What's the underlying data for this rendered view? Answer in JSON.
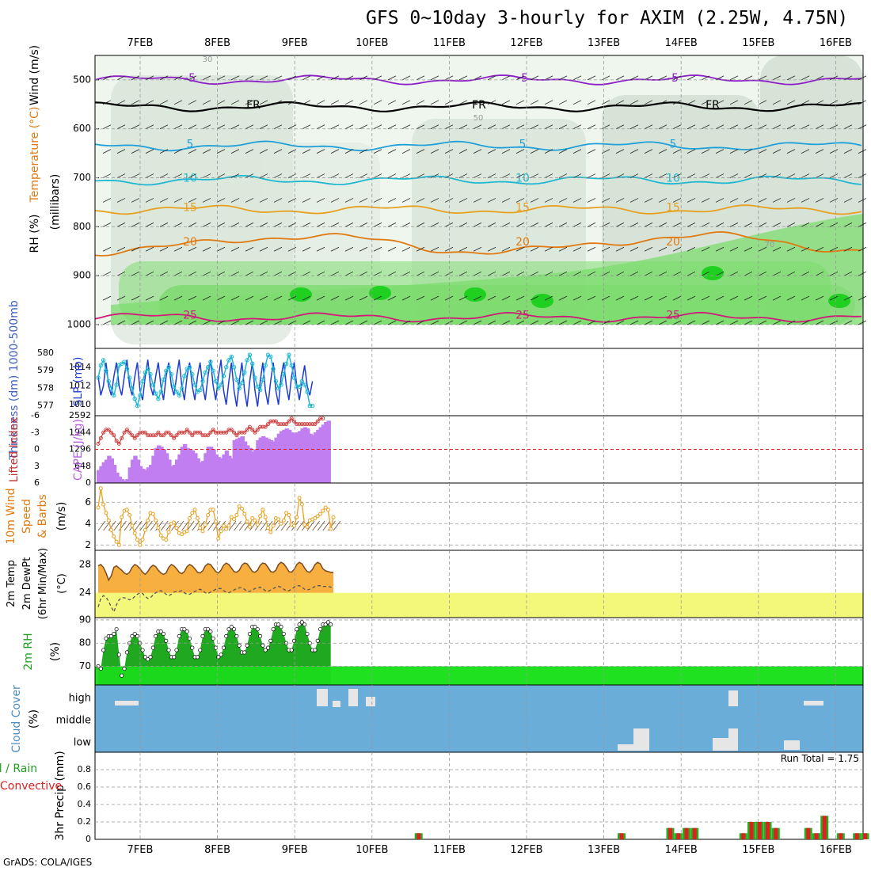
{
  "title": "GFS 0~10day 3-hourly for AXIM (2.25W, 4.75N)",
  "footer": "GrADS: COLA/IGES",
  "dates": [
    "7FEB",
    "8FEB",
    "9FEB",
    "10FEB",
    "11FEB",
    "12FEB",
    "13FEB",
    "14FEB",
    "15FEB",
    "16FEB"
  ],
  "colors": {
    "green": "#00c800",
    "lightgreen": "#7ddc6f",
    "purple": "#8c1fc8",
    "cyan": "#20b8d0",
    "blue": "#1e3cd2",
    "orange": "#e07a10",
    "yellowOrange": "#e8a020",
    "magenta": "#d01a7a",
    "cape": "#c07ef0",
    "cloudBg": "#6aadd8",
    "temp": "#f7b040",
    "dew": "#f4f87a",
    "red": "#e02020"
  },
  "chart_data": [
    {
      "type": "contour",
      "panel": "upper-air",
      "ylabel_parts": [
        "RH (%)",
        "Temperature (°C)",
        "Wind (m/s)"
      ],
      "ylabel_units": "(millibars)",
      "yticks": [
        500,
        600,
        700,
        800,
        900,
        1000
      ],
      "ylim": [
        1000,
        450
      ],
      "temperature_isotherms": [
        {
          "label": "-5",
          "p": 500
        },
        {
          "label": "FR",
          "p": 555
        },
        {
          "label": "5",
          "p": 635
        },
        {
          "label": "10",
          "p": 705
        },
        {
          "label": "15",
          "p": 765
        },
        {
          "label": "20",
          "p": 835
        },
        {
          "label": "25",
          "p": 985
        }
      ],
      "rh_labels": [
        "30",
        "50",
        "70"
      ]
    },
    {
      "type": "line",
      "panel": "thickness-slp",
      "ylabel_left": "Thickness (dm) 1000-500mb",
      "ylabel_right": "SLP (mb)",
      "yticks_left": [
        577,
        578,
        579,
        580
      ],
      "yticks_right": [
        1010,
        1012,
        1014
      ],
      "series": [
        {
          "name": "SLP (mb)",
          "values": [
            1013,
            1011,
            1012,
            1014.5,
            1012,
            1011,
            1013,
            1014.5,
            1012,
            1011,
            1013,
            1014.8,
            1012,
            1011,
            1013,
            1014.5,
            1011.5,
            1010.5,
            1013,
            1014.8,
            1012,
            1011,
            1013,
            1014.5,
            1012,
            1010.5,
            1013,
            1014.5,
            1012,
            1011,
            1013,
            1014.8,
            1012,
            1010.5,
            1013,
            1014.5,
            1012,
            1010.5,
            1013,
            1014.5,
            1012,
            1010.5,
            1013,
            1014.8,
            1012,
            1010.5,
            1013,
            1014.8,
            1011.5,
            1010,
            1012.5,
            1014.5,
            1011.5,
            1009.8,
            1012.5,
            1014.5,
            1011.5,
            1009.8,
            1012.5,
            1014.5,
            1011.5,
            1009.8,
            1012.5,
            1014.5,
            1011.5,
            1010,
            1012.5,
            1014.5,
            1011.5,
            1010,
            1013,
            1014.5,
            1012,
            1010.5,
            1013,
            1014.5,
            1012,
            1010.5,
            1012.5,
            1014.2,
            1012,
            1011,
            1012.5
          ]
        },
        {
          "name": "1000-500mb Thickness (dm)",
          "values": [
            578.6,
            579.3,
            579.6,
            579.0,
            578.4,
            578.0,
            577.6,
            578.2,
            579.3,
            579.4,
            579.5,
            579.1,
            578.6,
            578.0,
            577.4,
            577.0,
            577.6,
            578.4,
            578.9,
            579.1,
            578.8,
            578.2,
            577.7,
            577.4,
            577.8,
            578.5,
            579.0,
            579.2,
            578.8,
            578.1,
            577.8,
            577.6,
            578.0,
            578.7,
            579.1,
            579.2,
            578.8,
            578.2,
            577.8,
            577.9,
            578.4,
            578.9,
            579.2,
            579.5,
            579.0,
            578.4,
            578.0,
            578.2,
            578.7,
            579.2,
            579.6,
            579.8,
            579.2,
            578.5,
            578.0,
            578.3,
            578.9,
            579.6,
            579.9,
            579.4,
            578.6,
            578.1,
            577.9,
            578.5,
            579.3,
            579.9,
            579.8,
            579.1,
            578.4,
            578.0,
            578.2,
            578.8,
            579.4,
            579.9,
            579.3,
            578.6,
            578.1,
            578.1,
            578.4,
            578.2,
            577.8,
            577.0,
            577.0
          ]
        }
      ]
    },
    {
      "type": "bar-line",
      "panel": "cape-li",
      "ylabel_left": "Lifted Index",
      "ylabel_right": "CAPE (J/kg)",
      "yticks_left": [
        "-6",
        "-3",
        "0",
        "3",
        "6"
      ],
      "yticks_right": [
        648,
        1296,
        1944,
        2592
      ],
      "series": [
        {
          "name": "CAPE (J/kg)",
          "values": [
            500,
            650,
            800,
            900,
            1050,
            950,
            700,
            400,
            250,
            150,
            100,
            150,
            600,
            900,
            1050,
            900,
            650,
            550,
            500,
            600,
            700,
            1050,
            1350,
            1450,
            1400,
            1300,
            1150,
            900,
            650,
            700,
            900,
            1100,
            1400,
            1500,
            1350,
            1300,
            1250,
            1150,
            950,
            800,
            850,
            1150,
            1400,
            1400,
            1300,
            1100,
            1000,
            950,
            1100,
            1250,
            1050,
            950,
            1650,
            1700,
            1750,
            1800,
            1600,
            1450,
            1350,
            1200,
            1300,
            1650,
            1750,
            1800,
            1750,
            1700,
            1650,
            1600,
            1750,
            1900,
            2000,
            2050,
            2100,
            2050,
            1950,
            1900,
            1950,
            2000,
            2100,
            2150,
            2100,
            1900,
            1850,
            1950,
            2050,
            2150,
            2250,
            2350,
            2400
          ]
        },
        {
          "name": "Lifted Index",
          "values": [
            -1,
            -2,
            -3,
            -3.5,
            -3.5,
            -3,
            -2.5,
            -1.5,
            -1,
            -2,
            -3,
            -3.5,
            -3,
            -2.5,
            -2,
            -2.5,
            -3,
            -3,
            -3,
            -2.5,
            -2.5,
            -2.5,
            -2.5,
            -3,
            -2.5,
            -2.5,
            -3,
            -3,
            -2.5,
            -2,
            -2.5,
            -3,
            -3,
            -3,
            -3.5,
            -3,
            -2.5,
            -3,
            -3,
            -3,
            -2.5,
            -2.5,
            -2.5,
            -3,
            -3.5,
            -3,
            -3,
            -3,
            -3,
            -3,
            -3.5,
            -3.5,
            -3,
            -2.5,
            -3,
            -3,
            -3,
            -3.5,
            -4,
            -3.5,
            -3,
            -3.5,
            -4,
            -4,
            -4,
            -4.5,
            -5,
            -5,
            -5,
            -4.5,
            -4.5,
            -4.5,
            -4.5,
            -5,
            -5.5,
            -5,
            -4.5,
            -4.5,
            -4.5,
            -4.5,
            -4.5,
            -4.5,
            -4.5,
            -4.5,
            -5,
            -5.5,
            -5.5
          ]
        }
      ]
    },
    {
      "type": "line",
      "panel": "wind10m",
      "ylabel": "10m Wind Speed & Barbs (m/s)",
      "ylabel_lines": [
        "10m Wind",
        "Speed",
        "& Barbs"
      ],
      "ylabel_units": "(m/s)",
      "yticks": [
        2,
        4,
        6
      ],
      "ylim": [
        1.5,
        7.8
      ],
      "series": [
        {
          "name": "10m Wind Speed",
          "values": [
            5.5,
            7.3,
            5.8,
            5.0,
            4.3,
            3.4,
            2.8,
            2.3,
            2.0,
            4.6,
            5.2,
            5.3,
            4.8,
            3.8,
            3.1,
            2.5,
            2.0,
            2.5,
            3.4,
            4.3,
            5.0,
            4.9,
            4.3,
            3.6,
            2.9,
            2.6,
            2.5,
            3.2,
            4.0,
            4.1,
            3.6,
            3.1,
            3.0,
            3.2,
            3.3,
            4.5,
            5.0,
            5.3,
            4.5,
            3.6,
            3.3,
            3.9,
            4.8,
            5.3,
            5.3,
            4.2,
            2.6,
            3.3,
            3.8,
            3.5,
            3.8,
            4.6,
            4.4,
            4.8,
            5.6,
            5.4,
            4.9,
            4.2,
            3.7,
            4.5,
            4.3,
            3.9,
            4.7,
            5.3,
            4.6,
            3.6,
            3.2,
            3.8,
            4.5,
            4.4,
            4.0,
            4.3,
            5.0,
            4.8,
            3.9,
            3.8,
            4.6,
            6.4,
            5.8,
            3.9,
            3.7,
            4.3,
            4.4,
            4.5,
            4.7,
            4.9,
            5.2,
            5.5,
            5.3,
            3.5,
            4.6
          ]
        }
      ]
    },
    {
      "type": "area",
      "panel": "temp2m",
      "ylabel_lines": [
        "2m Temp",
        "2m DewPt",
        "(6hr Min/Max)"
      ],
      "ylabel_units": "(°C)",
      "yticks": [
        24,
        28
      ],
      "ylim": [
        20.5,
        30
      ],
      "series": [
        {
          "name": "2m Temp",
          "values": [
            27.8,
            28.0,
            27.6,
            26.8,
            25.8,
            26.4,
            27.6,
            27.8,
            27.5,
            27.2,
            26.8,
            26.6,
            26.9,
            27.6,
            28.0,
            27.8,
            27.4,
            26.9,
            26.6,
            27.0,
            27.6,
            27.9,
            27.7,
            27.2,
            26.8,
            26.6,
            26.8,
            27.6,
            28.0,
            27.8,
            27.4,
            26.9,
            26.7,
            27.0,
            27.7,
            28.0,
            27.8,
            27.4,
            26.9,
            26.8,
            27.1,
            27.8,
            28.1,
            28.0,
            27.5,
            27.0,
            26.8,
            27.2,
            27.9,
            28.2,
            28.0,
            27.5,
            27.0,
            26.9,
            27.2,
            27.9,
            28.2,
            28.1,
            27.6,
            27.0,
            26.9,
            27.2,
            27.9,
            28.2,
            28.1,
            27.6,
            27.0,
            26.9,
            27.2,
            28.0,
            28.3,
            28.1,
            27.6,
            27.0,
            26.9,
            27.3,
            28.0,
            28.3,
            28.1,
            27.5,
            27.0,
            26.9,
            27.3,
            28.0,
            28.3,
            28.1,
            27.4,
            27.1,
            27.0,
            26.9,
            26.9
          ]
        },
        {
          "name": "2m DewPt",
          "values": [
            22.0,
            23.2,
            23.6,
            23.4,
            22.8,
            22.0,
            21.3,
            22.3,
            23.0,
            23.3,
            23.3,
            23.2,
            23.0,
            23.1,
            23.5,
            23.8,
            24.0,
            23.9,
            23.5,
            23.2,
            23.3,
            23.7,
            24.0,
            24.2,
            24.3,
            24.1,
            23.8,
            23.6,
            23.8,
            24.1,
            24.2,
            24.2,
            24.3,
            24.0,
            23.8,
            23.8,
            24.0,
            24.2,
            24.4,
            24.5,
            24.3,
            24.0,
            23.9,
            24.1,
            24.3,
            24.5,
            24.6,
            24.6,
            24.3,
            24.1,
            24.0,
            24.2,
            24.4,
            24.6,
            24.7,
            24.7,
            24.5,
            24.2,
            24.2,
            24.4,
            24.6,
            24.7,
            24.8,
            24.6,
            24.3,
            24.2,
            24.4,
            24.6,
            24.8,
            24.9,
            24.8,
            24.5,
            24.3,
            24.3,
            24.5,
            24.8,
            25.0,
            25.0,
            24.8,
            24.5,
            24.4,
            24.5,
            24.7,
            24.9,
            25.0,
            25.0,
            24.9,
            24.9,
            24.9,
            24.8,
            24.8
          ]
        }
      ]
    },
    {
      "type": "area",
      "panel": "rh2m",
      "ylabel": "2m RH",
      "ylabel_units": "(%)",
      "yticks": [
        70,
        80,
        90
      ],
      "ylim": [
        62,
        91
      ],
      "series": [
        {
          "name": "2m RH",
          "values": [
            70,
            69,
            77,
            82,
            83,
            83,
            84,
            86,
            75,
            66,
            69,
            76,
            80,
            83,
            84,
            83,
            80,
            77,
            74,
            73,
            74,
            78,
            83,
            85,
            85,
            84,
            81,
            77,
            74,
            74,
            77,
            83,
            86,
            86,
            85,
            82,
            78,
            74,
            74,
            77,
            83,
            86,
            86,
            85,
            82,
            78,
            74,
            75,
            78,
            83,
            86,
            87,
            86,
            83,
            79,
            76,
            76,
            79,
            84,
            87,
            87,
            86,
            83,
            79,
            77,
            78,
            81,
            86,
            88,
            88,
            87,
            84,
            80,
            77,
            77,
            81,
            86,
            88,
            89,
            88,
            84,
            80,
            77,
            77,
            81,
            86,
            88,
            88,
            89,
            88
          ]
        }
      ]
    },
    {
      "type": "bar",
      "panel": "cloud",
      "ylabel": "Cloud Cover",
      "ylabel_units": "(%)",
      "levels": [
        "high",
        "middle",
        "low"
      ]
    },
    {
      "type": "bar",
      "panel": "precip",
      "ylabel": "3hr Precip (mm)",
      "legend": [
        "Total / Rain",
        "Convective"
      ],
      "annotation": "Run Total = 1.75",
      "yticks": [
        "0",
        "0.2",
        "0.4",
        "0.6",
        "0.8"
      ],
      "ylim": [
        0,
        1.0
      ],
      "series": [
        {
          "name": "3hr Precip (mm)",
          "values": [
            0,
            0,
            0,
            0,
            0,
            0,
            0,
            0,
            0,
            0,
            0,
            0,
            0,
            0,
            0,
            0,
            0,
            0,
            0,
            0,
            0,
            0,
            0,
            0,
            0,
            0,
            0,
            0,
            0,
            0,
            0,
            0,
            0,
            0,
            0,
            0,
            0,
            0,
            0,
            0.07,
            0,
            0,
            0,
            0,
            0,
            0,
            0,
            0,
            0,
            0,
            0,
            0,
            0,
            0,
            0,
            0,
            0,
            0,
            0,
            0,
            0,
            0,
            0,
            0,
            0.07,
            0,
            0,
            0,
            0,
            0,
            0.13,
            0.07,
            0.13,
            0.13,
            0,
            0,
            0,
            0,
            0,
            0.07,
            0.2,
            0.2,
            0.2,
            0.13,
            0,
            0,
            0,
            0.13,
            0.07,
            0.27,
            0,
            0.07,
            0,
            0.07,
            0.07
          ]
        }
      ]
    }
  ]
}
